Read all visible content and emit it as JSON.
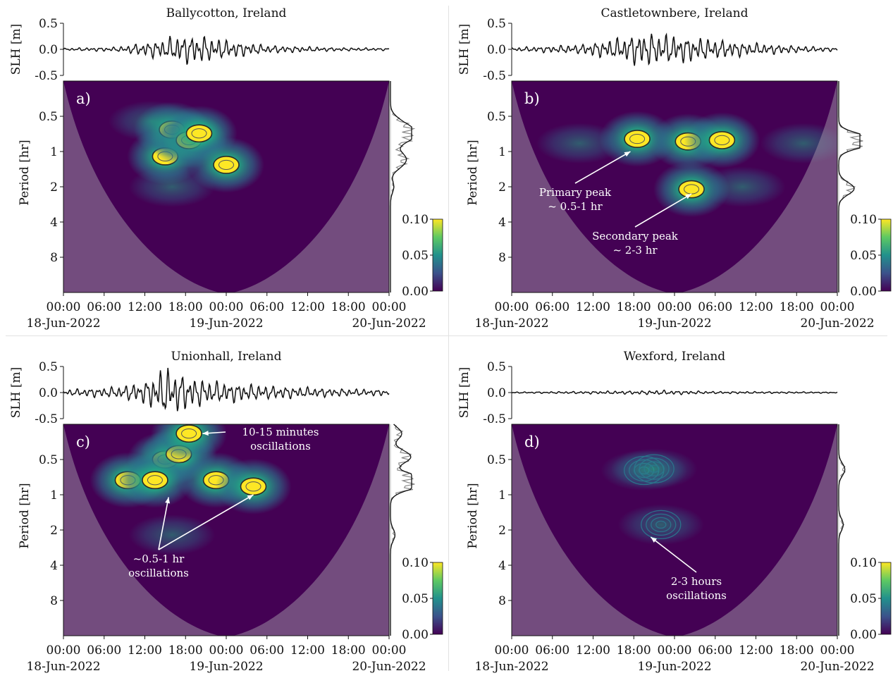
{
  "figure": {
    "colorbar_ticks": [
      "0.10",
      "0.05",
      "0.00"
    ],
    "period_ticks": [
      "0.5",
      "1",
      "2",
      "4",
      "8"
    ],
    "slh_ticks": [
      "0.5",
      "0.0",
      "-0.5"
    ],
    "time_ticks": [
      "00:00",
      "06:00",
      "12:00",
      "18:00",
      "00:00",
      "06:00",
      "12:00",
      "18:00",
      "00:00"
    ],
    "date_labels": [
      "18-Jun-2022",
      "19-Jun-2022",
      "20-Jun-2022"
    ],
    "slh_label": "SLH [m]",
    "period_label": "Period [hr]",
    "colors": {
      "background": "#440154",
      "low": "#2a788e",
      "mid": "#22a884",
      "high": "#fde725",
      "coi": "#9a8aa0"
    }
  },
  "chart_data": [
    {
      "type": "heatmap",
      "title": "Ballycotton, Ireland",
      "panel_label": "a)",
      "ylabel_top": "SLH [m]",
      "ylim_top": [
        -0.5,
        0.5
      ],
      "ylabel": "Period [hr]",
      "yticks": [
        "0.5",
        "1",
        "2",
        "4",
        "8"
      ],
      "xticks": [
        "00:00",
        "06:00",
        "12:00",
        "18:00",
        "00:00",
        "06:00",
        "12:00",
        "18:00",
        "00:00"
      ],
      "dates": [
        "18-Jun-2022",
        "19-Jun-2022",
        "20-Jun-2022"
      ],
      "colorbar": [
        0.0,
        0.05,
        0.1
      ],
      "slh_envelope": [
        {
          "hour": 0,
          "amp": 0.02
        },
        {
          "hour": 8,
          "amp": 0.04
        },
        {
          "hour": 12,
          "amp": 0.12
        },
        {
          "hour": 15,
          "amp": 0.18
        },
        {
          "hour": 17,
          "amp": 0.25
        },
        {
          "hour": 20,
          "amp": 0.25
        },
        {
          "hour": 24,
          "amp": 0.16
        },
        {
          "hour": 30,
          "amp": 0.07
        },
        {
          "hour": 40,
          "amp": 0.03
        },
        {
          "hour": 48,
          "amp": 0.02
        }
      ],
      "blobs": [
        {
          "hour": 15,
          "period": 1.1,
          "power": 0.1
        },
        {
          "hour": 16,
          "period": 0.65,
          "power": 0.1
        },
        {
          "hour": 18.5,
          "period": 0.8,
          "power": 0.1
        },
        {
          "hour": 20,
          "period": 0.7,
          "power": 0.1
        },
        {
          "hour": 24,
          "period": 1.3,
          "power": 0.08
        },
        {
          "hour": 13,
          "period": 0.55,
          "power": 0.06
        },
        {
          "hour": 16,
          "period": 2.0,
          "power": 0.03
        }
      ],
      "annotations": []
    },
    {
      "type": "heatmap",
      "title": "Castletownbere, Ireland",
      "panel_label": "b)",
      "ylabel_top": "SLH [m]",
      "ylim_top": [
        -0.5,
        0.5
      ],
      "ylabel": "Period [hr]",
      "yticks": [
        "0.5",
        "1",
        "2",
        "4",
        "8"
      ],
      "xticks": [
        "00:00",
        "06:00",
        "12:00",
        "18:00",
        "00:00",
        "06:00",
        "12:00",
        "18:00",
        "00:00"
      ],
      "dates": [
        "18-Jun-2022",
        "19-Jun-2022",
        "20-Jun-2022"
      ],
      "colorbar": [
        0.0,
        0.05,
        0.1
      ],
      "slh_envelope": [
        {
          "hour": 0,
          "amp": 0.03
        },
        {
          "hour": 10,
          "amp": 0.08
        },
        {
          "hour": 16,
          "amp": 0.2
        },
        {
          "hour": 19,
          "amp": 0.3
        },
        {
          "hour": 24,
          "amp": 0.25
        },
        {
          "hour": 28,
          "amp": 0.2
        },
        {
          "hour": 34,
          "amp": 0.12
        },
        {
          "hour": 42,
          "amp": 0.06
        },
        {
          "hour": 48,
          "amp": 0.03
        }
      ],
      "blobs": [
        {
          "hour": 18.5,
          "period": 0.78,
          "power": 0.1
        },
        {
          "hour": 26,
          "period": 0.82,
          "power": 0.1
        },
        {
          "hour": 31,
          "period": 0.8,
          "power": 0.1
        },
        {
          "hour": 26.5,
          "period": 2.1,
          "power": 0.1
        },
        {
          "hour": 10,
          "period": 0.85,
          "power": 0.04
        },
        {
          "hour": 43,
          "period": 0.85,
          "power": 0.04
        },
        {
          "hour": 34,
          "period": 2.0,
          "power": 0.04
        }
      ],
      "annotations": [
        {
          "lines": [
            "Primary peak",
            "~ 0.5-1 hr"
          ],
          "target": {
            "hour": 17.5,
            "period": 1.0
          }
        },
        {
          "lines": [
            "Secondary peak",
            "~ 2-3 hr"
          ],
          "target": {
            "hour": 26.5,
            "period": 2.3
          }
        }
      ]
    },
    {
      "type": "heatmap",
      "title": "Unionhall, Ireland",
      "panel_label": "c)",
      "ylabel_top": "SLH [m]",
      "ylim_top": [
        -0.5,
        0.5
      ],
      "ylabel": "Period [hr]",
      "yticks": [
        "0.5",
        "1",
        "2",
        "4",
        "8"
      ],
      "xticks": [
        "00:00",
        "06:00",
        "12:00",
        "18:00",
        "00:00",
        "06:00",
        "12:00",
        "18:00",
        "00:00"
      ],
      "dates": [
        "18-Jun-2022",
        "19-Jun-2022",
        "20-Jun-2022"
      ],
      "colorbar": [
        0.0,
        0.05,
        0.1
      ],
      "slh_envelope": [
        {
          "hour": 0,
          "amp": 0.05
        },
        {
          "hour": 8,
          "amp": 0.1
        },
        {
          "hour": 12,
          "amp": 0.2
        },
        {
          "hour": 15,
          "amp": 0.45
        },
        {
          "hour": 18,
          "amp": 0.3
        },
        {
          "hour": 22,
          "amp": 0.2
        },
        {
          "hour": 30,
          "amp": 0.12
        },
        {
          "hour": 40,
          "amp": 0.07
        },
        {
          "hour": 48,
          "amp": 0.05
        }
      ],
      "blobs": [
        {
          "hour": 15,
          "period": 0.5,
          "power": 0.1
        },
        {
          "hour": 17,
          "period": 0.45,
          "power": 0.1
        },
        {
          "hour": 18.5,
          "period": 0.3,
          "power": 0.1
        },
        {
          "hour": 9.5,
          "period": 0.75,
          "power": 0.1
        },
        {
          "hour": 13.5,
          "period": 0.75,
          "power": 0.1
        },
        {
          "hour": 22.5,
          "period": 0.75,
          "power": 0.1
        },
        {
          "hour": 28,
          "period": 0.85,
          "power": 0.1
        },
        {
          "hour": 16,
          "period": 2.2,
          "power": 0.04
        }
      ],
      "annotations": [
        {
          "lines": [
            "10-15 minutes",
            "oscillations"
          ],
          "target": {
            "hour": 20.5,
            "period": 0.3
          }
        },
        {
          "lines": [
            "~0.5-1 hr",
            "oscillations"
          ],
          "target": {
            "hour": 15.5,
            "period": 1.05
          }
        },
        {
          "lines": [],
          "target": {
            "hour": 28,
            "period": 1.0
          }
        }
      ]
    },
    {
      "type": "heatmap",
      "title": "Wexford, Ireland",
      "panel_label": "d)",
      "ylabel_top": "SLH [m]",
      "ylim_top": [
        -0.5,
        0.5
      ],
      "ylabel": "Period [hr]",
      "yticks": [
        "0.5",
        "1",
        "2",
        "4",
        "8"
      ],
      "xticks": [
        "00:00",
        "06:00",
        "12:00",
        "18:00",
        "00:00",
        "06:00",
        "12:00",
        "18:00",
        "00:00"
      ],
      "dates": [
        "18-Jun-2022",
        "19-Jun-2022",
        "20-Jun-2022"
      ],
      "colorbar": [
        0.0,
        0.05,
        0.1
      ],
      "slh_envelope": [
        {
          "hour": 0,
          "amp": 0.01
        },
        {
          "hour": 18,
          "amp": 0.03
        },
        {
          "hour": 22,
          "amp": 0.04
        },
        {
          "hour": 30,
          "amp": 0.02
        },
        {
          "hour": 48,
          "amp": 0.01
        }
      ],
      "blobs": [
        {
          "hour": 19.5,
          "period": 0.62,
          "power": 0.025
        },
        {
          "hour": 21,
          "period": 0.6,
          "power": 0.03
        },
        {
          "hour": 22,
          "period": 1.8,
          "power": 0.04
        }
      ],
      "annotations": [
        {
          "lines": [
            "2-3 hours",
            "oscillations"
          ],
          "target": {
            "hour": 20.5,
            "period": 2.3
          }
        }
      ]
    }
  ]
}
